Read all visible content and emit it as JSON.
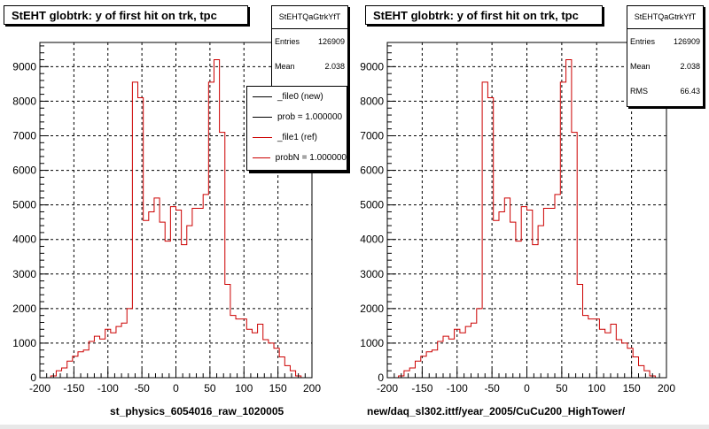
{
  "chart_data": [
    {
      "type": "histogram",
      "title": "StEHT globtrk: y of first hit on trk, tpc",
      "xlabel": "st_physics_6054016_raw_1020005",
      "ylabel": "",
      "xlim": [
        -200,
        200
      ],
      "ylim": [
        0,
        9700
      ],
      "grid": true,
      "x_ticks": [
        "-200",
        "-150",
        "-100",
        "-50",
        "0",
        "50",
        "100",
        "150",
        "200"
      ],
      "y_ticks": [
        "0",
        "1000",
        "2000",
        "3000",
        "4000",
        "5000",
        "6000",
        "7000",
        "8000",
        "9000"
      ],
      "stats": {
        "name": "StEHTQaGtrkYfT",
        "entries_label": "Entries",
        "entries": "126909",
        "mean_label": "Mean",
        "mean": "2.038"
      },
      "legend": {
        "placement": "top-right",
        "entries": [
          {
            "label": "_file0 (new)",
            "color": "#000000"
          },
          {
            "label": "prob = 1.000000",
            "color": "#000000"
          },
          {
            "label": "_file1 (ref)",
            "color": "#cc0000"
          },
          {
            "label": "probN = 1.000000",
            "color": "#cc0000"
          }
        ]
      },
      "series": [
        {
          "color": "#cc0000",
          "bin_width": 8,
          "bin_edges_start": -184,
          "values": [
            50,
            200,
            280,
            480,
            620,
            750,
            800,
            1050,
            1200,
            1120,
            1400,
            1300,
            1480,
            1580,
            2000,
            8550,
            8100,
            4550,
            4800,
            5200,
            4500,
            3950,
            4950,
            4850,
            3850,
            4400,
            4900,
            4900,
            5300,
            8550,
            9200,
            7100,
            2700,
            1800,
            1700,
            1700,
            1400,
            1300,
            1550,
            1100,
            1000,
            850,
            600,
            350,
            200,
            50
          ]
        }
      ]
    },
    {
      "type": "histogram",
      "title": "StEHT globtrk: y of first hit on trk, tpc",
      "xlabel": "new/daq_sl302.ittf/year_2005/CuCu200_HighTower/",
      "ylabel": "",
      "xlim": [
        -200,
        200
      ],
      "ylim": [
        0,
        9700
      ],
      "grid": true,
      "x_ticks": [
        "-200",
        "-150",
        "-100",
        "-50",
        "0",
        "50",
        "100",
        "150",
        "200"
      ],
      "y_ticks": [
        "0",
        "1000",
        "2000",
        "3000",
        "4000",
        "5000",
        "6000",
        "7000",
        "8000",
        "9000"
      ],
      "stats": {
        "name": "StEHTQaGtrkYfT",
        "entries_label": "Entries",
        "entries": "126909",
        "mean_label": "Mean",
        "mean": "2.038",
        "rms_label": "RMS",
        "rms": "66.43"
      },
      "series": [
        {
          "color": "#cc0000",
          "bin_width": 8,
          "bin_edges_start": -184,
          "values": [
            50,
            200,
            280,
            480,
            620,
            750,
            800,
            1050,
            1200,
            1120,
            1400,
            1300,
            1480,
            1580,
            2000,
            8550,
            8100,
            4550,
            4800,
            5200,
            4500,
            3950,
            4950,
            4850,
            3850,
            4400,
            4900,
            4900,
            5300,
            8550,
            9200,
            7100,
            2700,
            1800,
            1700,
            1700,
            1400,
            1300,
            1550,
            1100,
            1000,
            850,
            600,
            350,
            200,
            50
          ]
        }
      ]
    }
  ]
}
